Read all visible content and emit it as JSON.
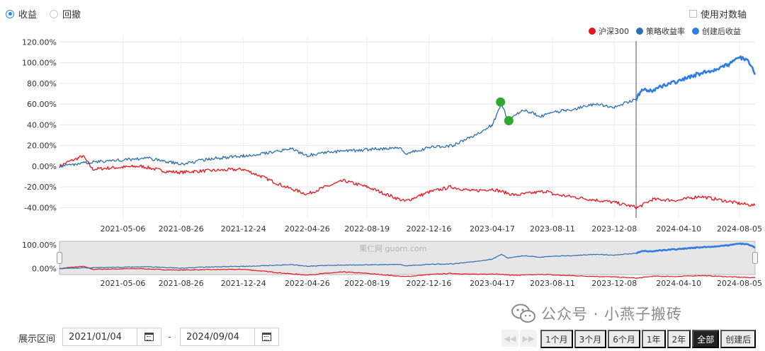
{
  "top_mode": {
    "options": [
      {
        "label": "收益",
        "selected": true
      },
      {
        "label": "回撤",
        "selected": false
      }
    ]
  },
  "log_axis": {
    "label": "使用对数轴",
    "checked": false
  },
  "colors": {
    "hs300": "#e8141c",
    "strategy": "#2c6fad",
    "post_creation": "#2f7de1",
    "marker": "#2ea82e",
    "nav_fill": "#e6e6e6"
  },
  "chart_data": {
    "type": "line",
    "ylim": [
      -50,
      125
    ],
    "yticks": [
      "120.00%",
      "100.00%",
      "80.00%",
      "60.00%",
      "40.00%",
      "20.00%",
      "0.00%",
      "-20.00%",
      "-40.00%"
    ],
    "ytick_values": [
      120,
      100,
      80,
      60,
      40,
      20,
      0,
      -20,
      -40
    ],
    "x_start": "2021-01-04",
    "x_end": "2024-09-04",
    "xticks": [
      "2021-05-06",
      "2021-08-26",
      "2021-12-24",
      "2022-04-26",
      "2022-08-19",
      "2022-12-16",
      "2023-04-17",
      "2023-08-11",
      "2023-12-08",
      "2024-04-10",
      "2024-08-05"
    ],
    "creation_date": "2024-01-19",
    "series": [
      {
        "name": "沪深300",
        "color": "#e8141c",
        "points": [
          [
            "2021-01-04",
            0
          ],
          [
            "2021-01-20",
            4
          ],
          [
            "2021-02-10",
            8
          ],
          [
            "2021-02-18",
            10
          ],
          [
            "2021-03-09",
            -3
          ],
          [
            "2021-04-01",
            -2
          ],
          [
            "2021-05-06",
            -1
          ],
          [
            "2021-06-10",
            0
          ],
          [
            "2021-07-28",
            -5
          ],
          [
            "2021-08-26",
            -6
          ],
          [
            "2021-09-20",
            -5
          ],
          [
            "2021-11-01",
            -4
          ],
          [
            "2021-12-24",
            -3
          ],
          [
            "2022-01-28",
            -10
          ],
          [
            "2022-03-15",
            -20
          ],
          [
            "2022-04-26",
            -27
          ],
          [
            "2022-05-20",
            -22
          ],
          [
            "2022-07-05",
            -14
          ],
          [
            "2022-08-19",
            -20
          ],
          [
            "2022-10-31",
            -34
          ],
          [
            "2022-12-16",
            -25
          ],
          [
            "2023-01-28",
            -20
          ],
          [
            "2023-03-10",
            -24
          ],
          [
            "2023-04-17",
            -22
          ],
          [
            "2023-05-31",
            -28
          ],
          [
            "2023-07-31",
            -24
          ],
          [
            "2023-08-11",
            -27
          ],
          [
            "2023-10-23",
            -32
          ],
          [
            "2023-12-08",
            -35
          ],
          [
            "2024-01-22",
            -40
          ],
          [
            "2024-02-20",
            -32
          ],
          [
            "2024-04-10",
            -33
          ],
          [
            "2024-05-20",
            -29
          ],
          [
            "2024-08-05",
            -36
          ],
          [
            "2024-09-04",
            -38
          ]
        ]
      },
      {
        "name": "策略收益率",
        "color": "#2c6fad",
        "points": [
          [
            "2021-01-04",
            0
          ],
          [
            "2021-02-18",
            3
          ],
          [
            "2021-04-01",
            5
          ],
          [
            "2021-05-06",
            6
          ],
          [
            "2021-06-20",
            8
          ],
          [
            "2021-08-26",
            2
          ],
          [
            "2021-10-20",
            7
          ],
          [
            "2021-12-24",
            10
          ],
          [
            "2022-02-20",
            14
          ],
          [
            "2022-03-25",
            17
          ],
          [
            "2022-04-26",
            10
          ],
          [
            "2022-05-20",
            13
          ],
          [
            "2022-08-19",
            16
          ],
          [
            "2022-10-20",
            18
          ],
          [
            "2022-10-31",
            12
          ],
          [
            "2022-12-16",
            18
          ],
          [
            "2023-01-31",
            20
          ],
          [
            "2023-03-15",
            30
          ],
          [
            "2023-04-17",
            40
          ],
          [
            "2023-05-05",
            60
          ],
          [
            "2023-05-18",
            44
          ],
          [
            "2023-06-15",
            55
          ],
          [
            "2023-07-20",
            48
          ],
          [
            "2023-08-11",
            52
          ],
          [
            "2023-09-20",
            55
          ],
          [
            "2023-11-01",
            60
          ],
          [
            "2023-12-08",
            57
          ],
          [
            "2024-01-19",
            65
          ]
        ]
      },
      {
        "name": "创建后收益",
        "color": "#2f7de1",
        "points": [
          [
            "2024-01-19",
            65
          ],
          [
            "2024-01-30",
            74
          ],
          [
            "2024-02-20",
            73
          ],
          [
            "2024-03-15",
            79
          ],
          [
            "2024-04-10",
            82
          ],
          [
            "2024-05-10",
            88
          ],
          [
            "2024-06-10",
            92
          ],
          [
            "2024-07-15",
            98
          ],
          [
            "2024-08-05",
            105
          ],
          [
            "2024-08-20",
            103
          ],
          [
            "2024-09-04",
            90
          ]
        ]
      }
    ],
    "markers": [
      {
        "date": "2023-05-03",
        "value": 62
      },
      {
        "date": "2023-05-19",
        "value": 44
      }
    ],
    "navigator": {
      "yticks": [
        "100.00%",
        "0.00%"
      ],
      "ytick_values": [
        100,
        0
      ]
    }
  },
  "range_selector": {
    "label": "展示区间",
    "from": "2021/01/04",
    "to": "2024/09/04",
    "separator": "-",
    "buttons": [
      {
        "label": "1个月",
        "active": false
      },
      {
        "label": "3个月",
        "active": false
      },
      {
        "label": "6个月",
        "active": false
      },
      {
        "label": "1年",
        "active": false
      },
      {
        "label": "2年",
        "active": false
      },
      {
        "label": "全部",
        "active": true
      },
      {
        "label": "创建后",
        "active": false
      }
    ]
  },
  "watermark": {
    "text": "公众号 · 小燕子搬砖",
    "site": "guorn.com",
    "site_cn": "果仁网"
  }
}
